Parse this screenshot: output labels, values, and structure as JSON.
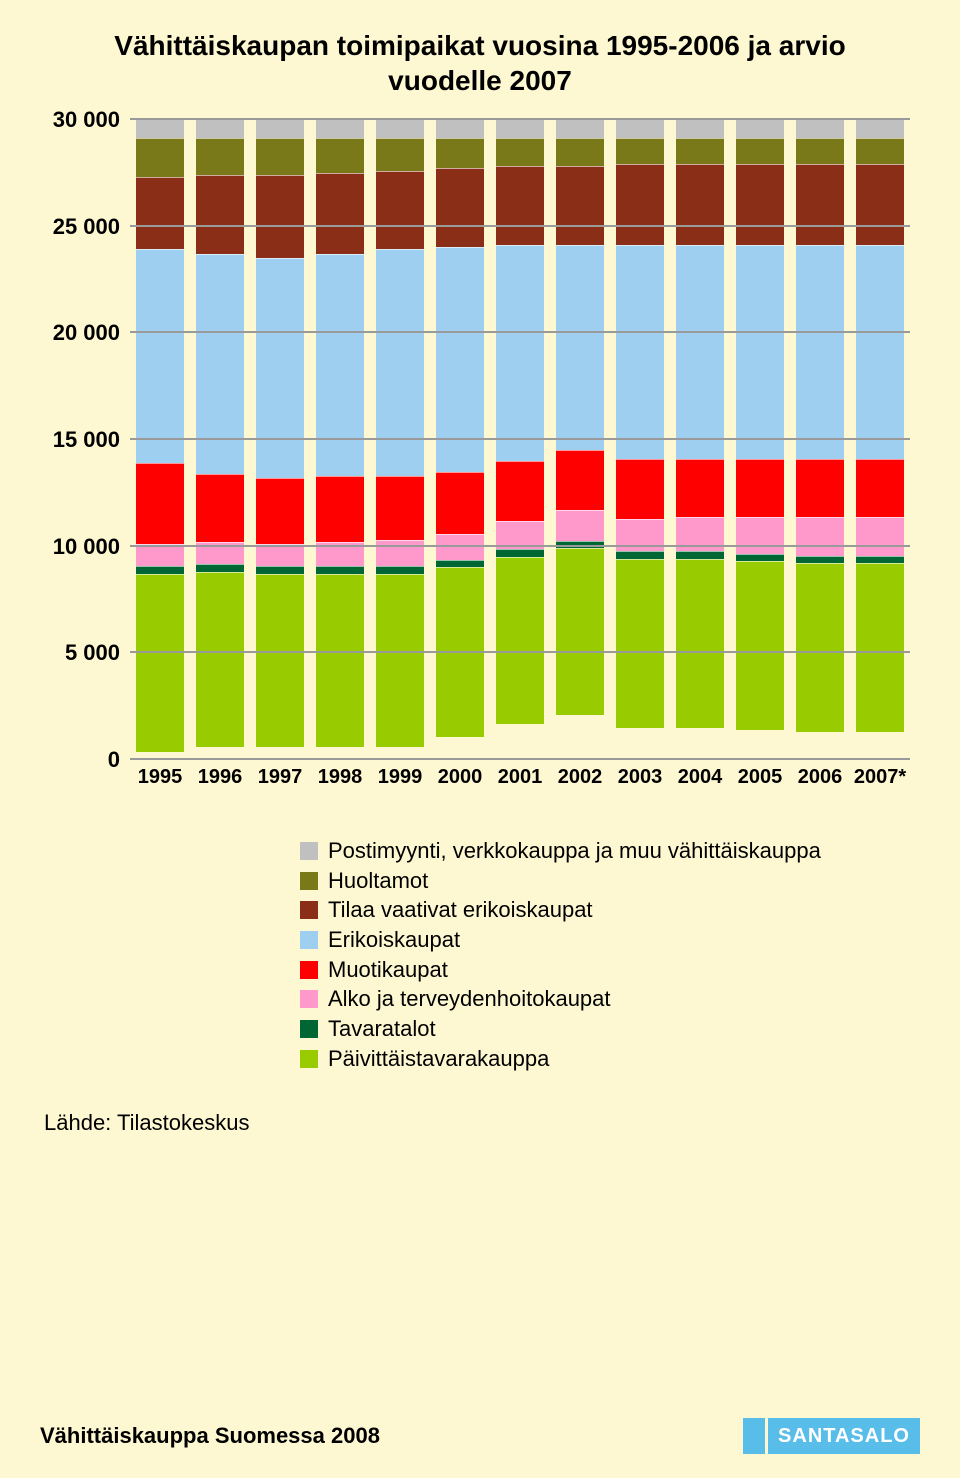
{
  "title_line1": "Vähittäiskaupan toimipaikat vuosina 1995-2006 ja arvio",
  "title_line2": "vuodelle 2007",
  "chart": {
    "type": "stacked-bar",
    "ylim_max": 30000,
    "ytick_step": 5000,
    "y_ticks": [
      "0",
      "5 000",
      "10 000",
      "15 000",
      "20 000",
      "25 000",
      "30 000"
    ],
    "grid_color": "#9a9a9a",
    "background_color": "#fdf8d1",
    "axis_fontsize": 22,
    "categories": [
      "1995",
      "1996",
      "1997",
      "1998",
      "1999",
      "2000",
      "2001",
      "2002",
      "2003",
      "2004",
      "2005",
      "2006",
      "2007*"
    ],
    "series": [
      {
        "key": "paivittaistavarakauppa",
        "label": "Päivittäistavarakauppa",
        "color": "#99cc00"
      },
      {
        "key": "tavaratalot",
        "label": "Tavaratalot",
        "color": "#006633"
      },
      {
        "key": "alko",
        "label": "Alko ja terveydenhoitokaupat",
        "color": "#ff99cc"
      },
      {
        "key": "muotikaupat",
        "label": "Muotikaupat",
        "color": "#ff0000"
      },
      {
        "key": "erikoiskaupat",
        "label": "Erikoiskaupat",
        "color": "#9ecff1"
      },
      {
        "key": "tilaa_vaativat",
        "label": "Tilaa vaativat erikoiskaupat",
        "color": "#8b2e17"
      },
      {
        "key": "huoltamot",
        "label": "Huoltamot",
        "color": "#7a7919"
      },
      {
        "key": "postimyynti",
        "label": "Postimyynti, verkkokauppa ja muu vähittäiskauppa",
        "color": "#c0c0c0"
      }
    ],
    "data": {
      "paivittaistavarakauppa": [
        8400,
        8300,
        8200,
        8200,
        8200,
        8000,
        7900,
        7900,
        8000,
        8000,
        8000,
        8000,
        8000
      ],
      "tavaratalot": [
        300,
        300,
        300,
        300,
        300,
        300,
        300,
        300,
        300,
        300,
        300,
        300,
        300
      ],
      "alko": [
        1000,
        1000,
        1000,
        1100,
        1200,
        1200,
        1300,
        1400,
        1500,
        1600,
        1700,
        1800,
        1800
      ],
      "muotikaupat": [
        3800,
        3200,
        3100,
        3100,
        3000,
        2900,
        2800,
        2800,
        2800,
        2700,
        2700,
        2700,
        2700
      ],
      "erikoiskaupat": [
        10100,
        10400,
        10400,
        10500,
        10700,
        10600,
        10200,
        9700,
        10100,
        10100,
        10100,
        10100,
        10100
      ],
      "tilaa_vaativat": [
        3400,
        3700,
        3900,
        3800,
        3700,
        3700,
        3700,
        3700,
        3800,
        3800,
        3800,
        3800,
        3800
      ],
      "huoltamot": [
        1800,
        1700,
        1700,
        1600,
        1500,
        1400,
        1300,
        1300,
        1200,
        1200,
        1200,
        1200,
        1200
      ],
      "postimyynti": [
        900,
        900,
        900,
        900,
        900,
        900,
        900,
        900,
        900,
        900,
        900,
        900,
        900
      ]
    }
  },
  "legend_title_fontsize": 22,
  "source_label": "Lähde: Tilastokeskus",
  "footer_left": "Vähittäiskauppa Suomessa 2008",
  "logo_text": "SANTASALO"
}
